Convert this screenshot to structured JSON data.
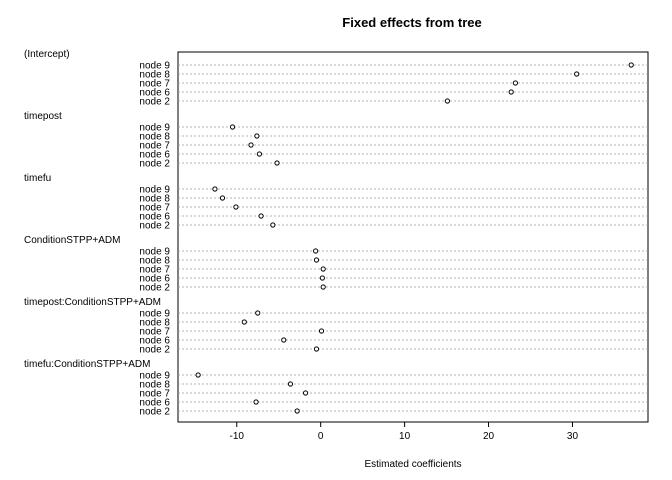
{
  "chart_data": {
    "type": "scatter",
    "title": "Fixed effects from tree",
    "xlabel": "Estimated coefficients",
    "ylabel": "",
    "xlim": [
      -17,
      39
    ],
    "xticks": [
      -10,
      0,
      10,
      20,
      30
    ],
    "grid": "dotted horizontal per row",
    "legend": "none",
    "groups": [
      {
        "name": "(Intercept)",
        "rows": [
          {
            "label": "node 9",
            "value": 37.0
          },
          {
            "label": "node 8",
            "value": 30.5
          },
          {
            "label": "node 7",
            "value": 23.2
          },
          {
            "label": "node 6",
            "value": 22.7
          },
          {
            "label": "node 2",
            "value": 15.1
          }
        ]
      },
      {
        "name": "timepost",
        "rows": [
          {
            "label": "node 9",
            "value": -10.5
          },
          {
            "label": "node 8",
            "value": -7.6
          },
          {
            "label": "node 7",
            "value": -8.3
          },
          {
            "label": "node 6",
            "value": -7.3
          },
          {
            "label": "node 2",
            "value": -5.2
          }
        ]
      },
      {
        "name": "timefu",
        "rows": [
          {
            "label": "node 9",
            "value": -12.6
          },
          {
            "label": "node 8",
            "value": -11.7
          },
          {
            "label": "node 7",
            "value": -10.1
          },
          {
            "label": "node 6",
            "value": -7.1
          },
          {
            "label": "node 2",
            "value": -5.7
          }
        ]
      },
      {
        "name": "ConditionSTPP+ADM",
        "rows": [
          {
            "label": "node 9",
            "value": -0.6
          },
          {
            "label": "node 8",
            "value": -0.5
          },
          {
            "label": "node 7",
            "value": 0.3
          },
          {
            "label": "node 6",
            "value": 0.2
          },
          {
            "label": "node 2",
            "value": 0.3
          }
        ]
      },
      {
        "name": "timepost:ConditionSTPP+ADM",
        "rows": [
          {
            "label": "node 9",
            "value": -7.5
          },
          {
            "label": "node 8",
            "value": -9.1
          },
          {
            "label": "node 7",
            "value": 0.1
          },
          {
            "label": "node 6",
            "value": -4.4
          },
          {
            "label": "node 2",
            "value": -0.5
          }
        ]
      },
      {
        "name": "timefu:ConditionSTPP+ADM",
        "rows": [
          {
            "label": "node 9",
            "value": -14.6
          },
          {
            "label": "node 8",
            "value": -3.6
          },
          {
            "label": "node 7",
            "value": -1.8
          },
          {
            "label": "node 6",
            "value": -7.7
          },
          {
            "label": "node 2",
            "value": -2.8
          }
        ]
      }
    ]
  }
}
